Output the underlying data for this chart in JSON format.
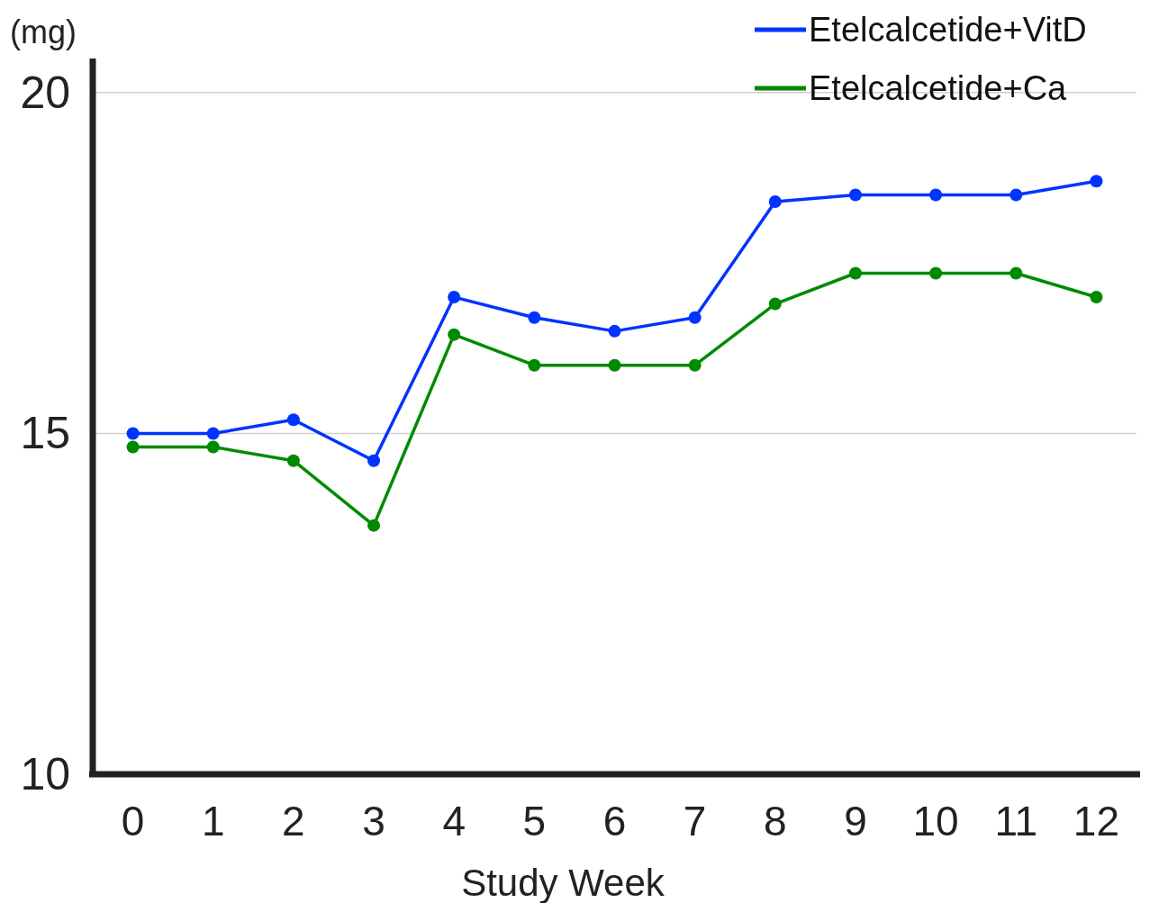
{
  "chart_data": {
    "type": "line",
    "xlabel": "Study Week",
    "ylabel": "(mg)",
    "x": [
      0,
      1,
      2,
      3,
      4,
      5,
      6,
      7,
      8,
      9,
      10,
      11,
      12
    ],
    "series": [
      {
        "name": "Etelcalcetide+VitD",
        "color": "#0033ff",
        "values": [
          15.0,
          15.0,
          15.2,
          14.6,
          17.0,
          16.7,
          16.5,
          16.7,
          18.4,
          18.5,
          18.5,
          18.5,
          18.7
        ]
      },
      {
        "name": "Etelcalcetide+Ca",
        "color": "#008a00",
        "values": [
          14.8,
          14.8,
          14.6,
          13.65,
          16.45,
          16.0,
          16.0,
          16.0,
          16.9,
          17.35,
          17.35,
          17.35,
          17.0
        ]
      }
    ],
    "xlim": [
      -0.5,
      12.5
    ],
    "xticks": [
      0,
      1,
      2,
      3,
      4,
      5,
      6,
      7,
      8,
      9,
      10,
      11,
      12
    ],
    "ylim": [
      10,
      20.5
    ],
    "yticks": [
      10,
      15,
      20
    ],
    "grid": "y",
    "legend": "top right",
    "marker": "circle",
    "line_style": "solid"
  }
}
